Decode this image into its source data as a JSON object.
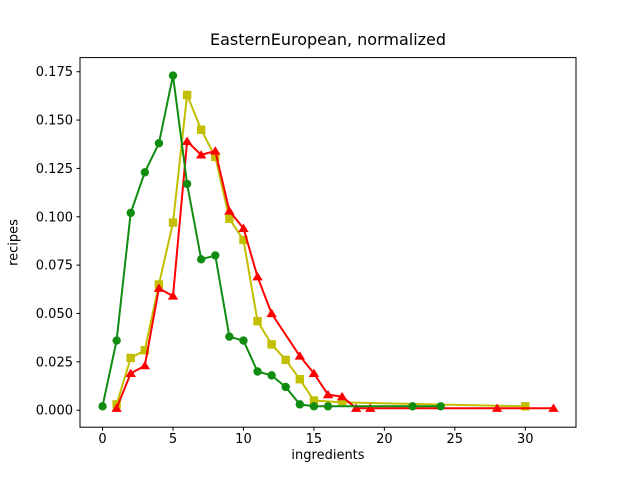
{
  "chart_data": {
    "type": "line",
    "title": "EasternEuropean, normalized",
    "xlabel": "ingredients",
    "ylabel": "recipes",
    "xlim": [
      -1.6,
      33.6
    ],
    "ylim": [
      -0.0088,
      0.1823
    ],
    "xticks": [
      0,
      5,
      10,
      15,
      20,
      25,
      30
    ],
    "yticks": [
      0,
      0.025,
      0.05,
      0.075,
      0.1,
      0.125,
      0.15,
      0.175
    ],
    "grid": false,
    "legend": "none",
    "background": "#ffffff",
    "axis_color": "#000000",
    "series": [
      {
        "name": "yellow",
        "color": "#c2bf00",
        "marker": "square",
        "points": [
          [
            1,
            0.003
          ],
          [
            2,
            0.027
          ],
          [
            3,
            0.031
          ],
          [
            4,
            0.065
          ],
          [
            5,
            0.097
          ],
          [
            6,
            0.163
          ],
          [
            7,
            0.145
          ],
          [
            8,
            0.131
          ],
          [
            9,
            0.099
          ],
          [
            10,
            0.088
          ],
          [
            11,
            0.046
          ],
          [
            12,
            0.034
          ],
          [
            13,
            0.026
          ],
          [
            14,
            0.016
          ],
          [
            15,
            0.005
          ],
          [
            17,
            0.004
          ],
          [
            30,
            0.002
          ]
        ]
      },
      {
        "name": "red",
        "color": "#ff0000",
        "marker": "triangle-up",
        "points": [
          [
            1,
            0.001
          ],
          [
            2,
            0.019
          ],
          [
            3,
            0.023
          ],
          [
            4,
            0.063
          ],
          [
            5,
            0.059
          ],
          [
            6,
            0.139
          ],
          [
            7,
            0.132
          ],
          [
            8,
            0.134
          ],
          [
            9,
            0.103
          ],
          [
            10,
            0.094
          ],
          [
            11,
            0.069
          ],
          [
            12,
            0.05
          ],
          [
            14,
            0.028
          ],
          [
            15,
            0.019
          ],
          [
            16,
            0.008
          ],
          [
            17,
            0.007
          ],
          [
            18,
            0.001
          ],
          [
            19,
            0.001
          ],
          [
            28,
            0.001
          ],
          [
            32,
            0.001
          ]
        ]
      },
      {
        "name": "green",
        "color": "#108c10",
        "marker": "circle",
        "points": [
          [
            0,
            0.002
          ],
          [
            1,
            0.036
          ],
          [
            2,
            0.102
          ],
          [
            3,
            0.123
          ],
          [
            4,
            0.138
          ],
          [
            5,
            0.173
          ],
          [
            6,
            0.117
          ],
          [
            7,
            0.078
          ],
          [
            8,
            0.08
          ],
          [
            9,
            0.038
          ],
          [
            10,
            0.036
          ],
          [
            11,
            0.02
          ],
          [
            12,
            0.018
          ],
          [
            13,
            0.012
          ],
          [
            14,
            0.003
          ],
          [
            15,
            0.002
          ],
          [
            16,
            0.002
          ],
          [
            22,
            0.002
          ],
          [
            24,
            0.002
          ]
        ]
      }
    ]
  }
}
